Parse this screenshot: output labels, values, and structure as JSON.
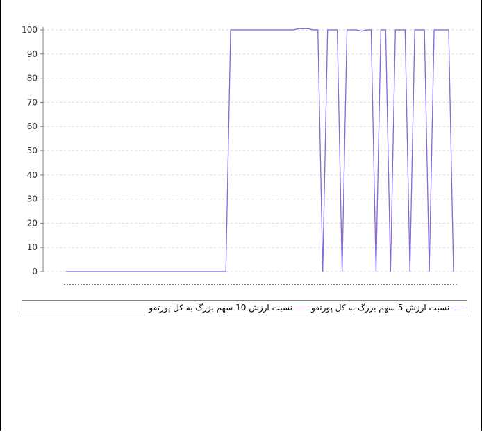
{
  "chart_data": {
    "type": "line",
    "title": "",
    "xlabel": "",
    "ylabel": "",
    "ylim": [
      0,
      100
    ],
    "yticks": [
      0,
      10,
      20,
      30,
      40,
      50,
      60,
      70,
      80,
      90,
      100
    ],
    "grid": true,
    "legend_position": "bottom",
    "series": [
      {
        "name": "نسبت ارزش 5 سهم بزرگ به کل پورتفو",
        "color": "#6666ff",
        "points": [
          [
            0,
            0
          ],
          [
            33,
            0
          ],
          [
            34,
            100
          ],
          [
            47,
            100
          ],
          [
            48,
            100.5
          ],
          [
            50,
            100.5
          ],
          [
            51,
            100
          ],
          [
            52,
            100
          ],
          [
            53,
            0
          ],
          [
            54,
            100
          ],
          [
            56,
            100
          ],
          [
            57,
            0
          ],
          [
            58,
            100
          ],
          [
            60,
            100
          ],
          [
            61,
            99.5
          ],
          [
            62,
            100
          ],
          [
            63,
            100
          ],
          [
            64,
            0
          ],
          [
            65,
            100
          ],
          [
            66,
            100
          ],
          [
            67,
            0
          ],
          [
            68,
            100
          ],
          [
            70,
            100
          ],
          [
            71,
            0
          ],
          [
            72,
            100
          ],
          [
            74,
            100
          ],
          [
            75,
            0
          ],
          [
            76,
            100
          ],
          [
            79,
            100
          ],
          [
            80,
            0
          ]
        ]
      },
      {
        "name": "نسبت ارزش 10 سهم بزرگ به کل پورتفو",
        "color": "#ff6666",
        "points": [
          [
            0,
            0
          ],
          [
            33,
            0
          ],
          [
            34,
            100
          ],
          [
            47,
            100
          ],
          [
            48,
            100.5
          ],
          [
            50,
            100.5
          ],
          [
            51,
            100
          ],
          [
            52,
            100
          ],
          [
            53,
            0
          ],
          [
            54,
            100
          ],
          [
            56,
            100
          ],
          [
            57,
            0
          ],
          [
            58,
            100
          ],
          [
            60,
            100
          ],
          [
            61,
            99.5
          ],
          [
            62,
            100
          ],
          [
            63,
            100
          ],
          [
            64,
            0
          ],
          [
            65,
            100
          ],
          [
            66,
            100
          ],
          [
            67,
            0
          ],
          [
            68,
            100
          ],
          [
            70,
            100
          ],
          [
            71,
            0
          ],
          [
            72,
            100
          ],
          [
            74,
            100
          ],
          [
            75,
            0
          ],
          [
            76,
            100
          ],
          [
            79,
            100
          ],
          [
            80,
            0
          ]
        ]
      }
    ],
    "xrange": [
      0,
      80
    ]
  }
}
